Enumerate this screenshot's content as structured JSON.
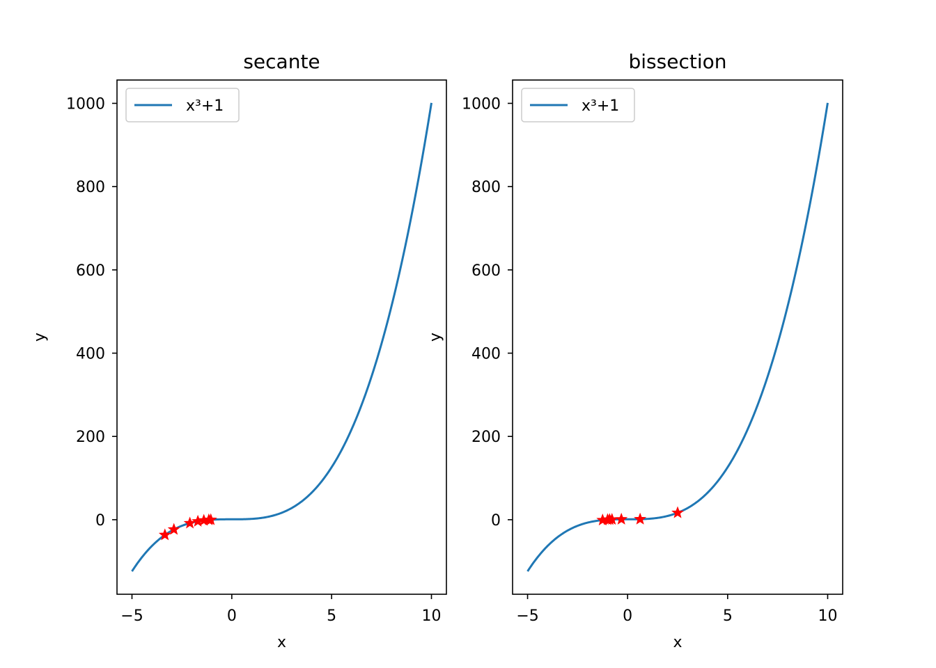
{
  "chart_data": [
    {
      "type": "line",
      "title": "secante",
      "xlabel": "x",
      "ylabel": "y",
      "xlim": [
        -5.75,
        10.75
      ],
      "ylim": [
        -179,
        1056
      ],
      "xticks": [
        -5,
        0,
        5,
        10
      ],
      "xtick_labels": [
        "−5",
        "0",
        "5",
        "10"
      ],
      "yticks": [
        0,
        200,
        400,
        600,
        800,
        1000
      ],
      "ytick_labels": [
        "0",
        "200",
        "400",
        "600",
        "800",
        "1000"
      ],
      "grid": false,
      "legend": {
        "position": "upper-left",
        "entries": [
          "x³+1"
        ]
      },
      "curve": {
        "name": "x³+1",
        "function": "x^3+1",
        "x_range": [
          -5,
          10
        ],
        "color": "#1f77b4"
      },
      "markers": {
        "color": "#ff0000",
        "style": "star",
        "x": [
          -3.35,
          -2.9,
          -2.1,
          -1.7,
          -1.4,
          -1.15,
          -1.05
        ],
        "y": [
          -36.6,
          -23.4,
          -8.3,
          -3.9,
          -1.7,
          -0.5,
          -0.2
        ]
      }
    },
    {
      "type": "line",
      "title": "bissection",
      "xlabel": "x",
      "ylabel": "y",
      "xlim": [
        -5.75,
        10.75
      ],
      "ylim": [
        -179,
        1056
      ],
      "xticks": [
        -5,
        0,
        5,
        10
      ],
      "xtick_labels": [
        "−5",
        "0",
        "5",
        "10"
      ],
      "yticks": [
        0,
        200,
        400,
        600,
        800,
        1000
      ],
      "ytick_labels": [
        "0",
        "200",
        "400",
        "600",
        "800",
        "1000"
      ],
      "grid": false,
      "legend": {
        "position": "upper-left",
        "entries": [
          "x³+1"
        ]
      },
      "curve": {
        "name": "x³+1",
        "function": "x^3+1",
        "x_range": [
          -5,
          10
        ],
        "color": "#1f77b4"
      },
      "markers": {
        "color": "#ff0000",
        "style": "star",
        "x": [
          2.5,
          0.625,
          -0.3125,
          -0.78,
          -1.0,
          -1.25,
          -0.9
        ],
        "y": [
          16.6,
          1.24,
          0.97,
          0.53,
          0.0,
          -0.95,
          0.27
        ]
      }
    }
  ]
}
